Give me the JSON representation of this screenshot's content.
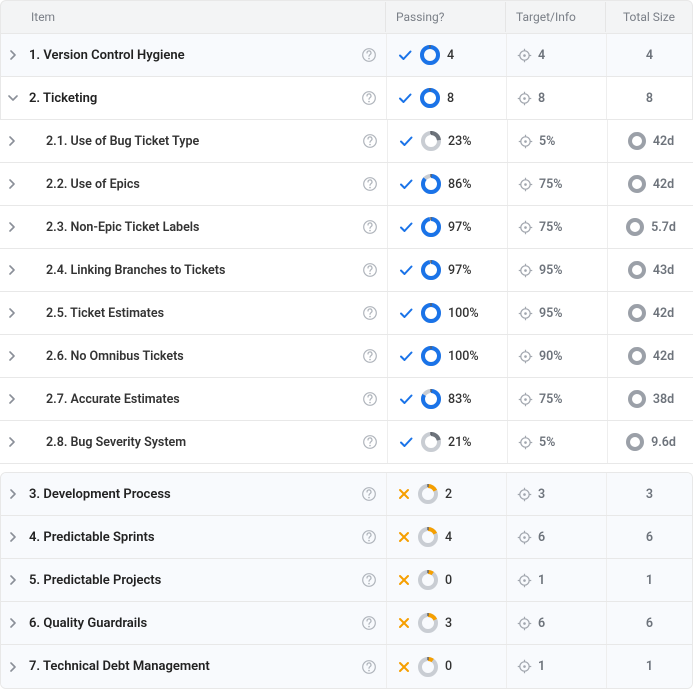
{
  "colors": {
    "blue": "#1a73e8",
    "orange": "#f59f00",
    "grey": "#6d737b",
    "ring_track_light": "#c9cdd3",
    "ring_track_grey": "#9ba0a8",
    "header_bg": "#f3f4f5",
    "section_bg": "#f8fafd",
    "border": "#e8e8e8"
  },
  "headers": {
    "item": "Item",
    "passing": "Passing?",
    "target": "Target/Info",
    "total": "Total Size"
  },
  "rows": [
    {
      "id": "r1",
      "kind": "section",
      "expanded": false,
      "label": "1. Version Control Hygiene",
      "status": "pass",
      "progress_pct": 100,
      "progress_color": "blue",
      "passing_value": "4",
      "target_value": "4",
      "total_value": "4",
      "total_ring": false
    },
    {
      "id": "r2",
      "kind": "section",
      "expanded": true,
      "label": "2. Ticketing",
      "status": "pass",
      "progress_pct": 100,
      "progress_color": "blue",
      "passing_value": "8",
      "target_value": "8",
      "total_value": "8",
      "total_ring": false
    },
    {
      "id": "r2-1",
      "kind": "sub",
      "label": "2.1. Use of Bug Ticket Type",
      "status": "pass",
      "progress_pct": 23,
      "progress_color": "grey",
      "passing_value": "23%",
      "target_value": "5%",
      "total_value": "42d",
      "total_ring": true
    },
    {
      "id": "r2-2",
      "kind": "sub",
      "label": "2.2. Use of Epics",
      "status": "pass",
      "progress_pct": 86,
      "progress_color": "blue",
      "passing_value": "86%",
      "target_value": "75%",
      "total_value": "42d",
      "total_ring": true
    },
    {
      "id": "r2-3",
      "kind": "sub",
      "label": "2.3. Non-Epic Ticket Labels",
      "status": "pass",
      "progress_pct": 97,
      "progress_color": "blue",
      "passing_value": "97%",
      "target_value": "75%",
      "total_value": "5.7d",
      "total_ring": true
    },
    {
      "id": "r2-4",
      "kind": "sub",
      "label": "2.4. Linking Branches to Tickets",
      "status": "pass",
      "progress_pct": 97,
      "progress_color": "blue",
      "passing_value": "97%",
      "target_value": "95%",
      "total_value": "43d",
      "total_ring": true
    },
    {
      "id": "r2-5",
      "kind": "sub",
      "label": "2.5. Ticket Estimates",
      "status": "pass",
      "progress_pct": 100,
      "progress_color": "blue",
      "passing_value": "100%",
      "target_value": "95%",
      "total_value": "42d",
      "total_ring": true
    },
    {
      "id": "r2-6",
      "kind": "sub",
      "label": "2.6. No Omnibus Tickets",
      "status": "pass",
      "progress_pct": 100,
      "progress_color": "blue",
      "passing_value": "100%",
      "target_value": "90%",
      "total_value": "42d",
      "total_ring": true
    },
    {
      "id": "r2-7",
      "kind": "sub",
      "label": "2.7. Accurate Estimates",
      "status": "pass",
      "progress_pct": 83,
      "progress_color": "blue",
      "passing_value": "83%",
      "target_value": "75%",
      "total_value": "38d",
      "total_ring": true
    },
    {
      "id": "r2-8",
      "kind": "sub",
      "label": "2.8. Bug Severity System",
      "status": "pass",
      "progress_pct": 21,
      "progress_color": "grey",
      "passing_value": "21%",
      "target_value": "5%",
      "total_value": "9.6d",
      "total_ring": true
    },
    {
      "id": "r3",
      "kind": "section",
      "block_start": true,
      "label": "3. Development Process",
      "status": "fail",
      "progress_pct": 18,
      "progress_color": "orange",
      "passing_value": "2",
      "target_value": "3",
      "total_value": "3",
      "total_ring": false
    },
    {
      "id": "r4",
      "kind": "section",
      "label": "4. Predictable Sprints",
      "status": "fail",
      "progress_pct": 18,
      "progress_color": "orange",
      "passing_value": "4",
      "target_value": "6",
      "total_value": "6",
      "total_ring": false
    },
    {
      "id": "r5",
      "kind": "section",
      "label": "5. Predictable Projects",
      "status": "fail",
      "progress_pct": 10,
      "progress_color": "orange",
      "passing_value": "0",
      "target_value": "1",
      "total_value": "1",
      "total_ring": false
    },
    {
      "id": "r6",
      "kind": "section",
      "label": "6. Quality Guardrails",
      "status": "fail",
      "progress_pct": 18,
      "progress_color": "orange",
      "passing_value": "3",
      "target_value": "6",
      "total_value": "6",
      "total_ring": false
    },
    {
      "id": "r7",
      "kind": "section",
      "label": "7. Technical Debt Management",
      "status": "fail",
      "progress_pct": 10,
      "progress_color": "orange",
      "passing_value": "0",
      "target_value": "1",
      "total_value": "1",
      "total_ring": false
    }
  ]
}
